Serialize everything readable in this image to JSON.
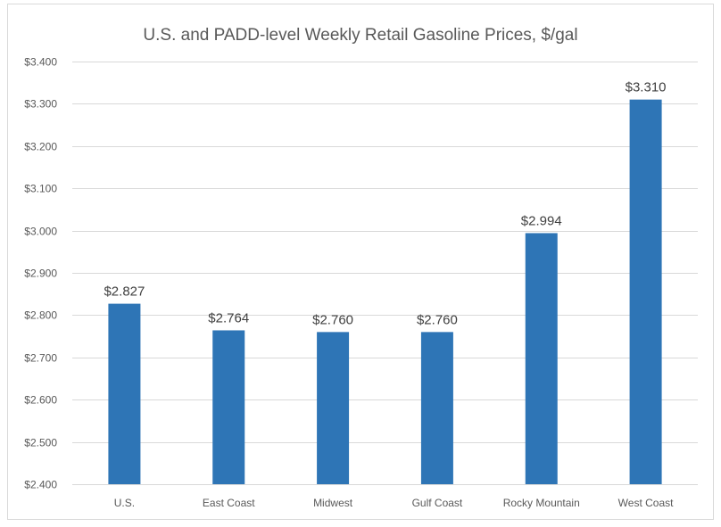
{
  "chart_data": {
    "type": "bar",
    "title": "U.S. and PADD-level Weekly Retail Gasoline Prices, $/gal",
    "xlabel": "",
    "ylabel": "",
    "categories": [
      "U.S.",
      "East Coast",
      "Midwest",
      "Gulf Coast",
      "Rocky Mountain",
      "West Coast"
    ],
    "values": [
      2.827,
      2.764,
      2.76,
      2.76,
      2.994,
      3.31
    ],
    "data_labels": [
      "$2.827",
      "$2.764",
      "$2.760",
      "$2.760",
      "$2.994",
      "$3.310"
    ],
    "ylim": [
      2.4,
      3.4
    ],
    "yticks": [
      2.4,
      2.5,
      2.6,
      2.7,
      2.8,
      2.9,
      3.0,
      3.1,
      3.2,
      3.3,
      3.4
    ],
    "ytick_labels": [
      "$2.400",
      "$2.500",
      "$2.600",
      "$2.700",
      "$2.800",
      "$2.900",
      "$3.000",
      "$3.100",
      "$3.200",
      "$3.300",
      "$3.400"
    ],
    "grid": true,
    "legend": "none",
    "colors": {
      "bar": "#2e75b6",
      "grid": "#d9d9d9",
      "text": "#595959"
    }
  }
}
